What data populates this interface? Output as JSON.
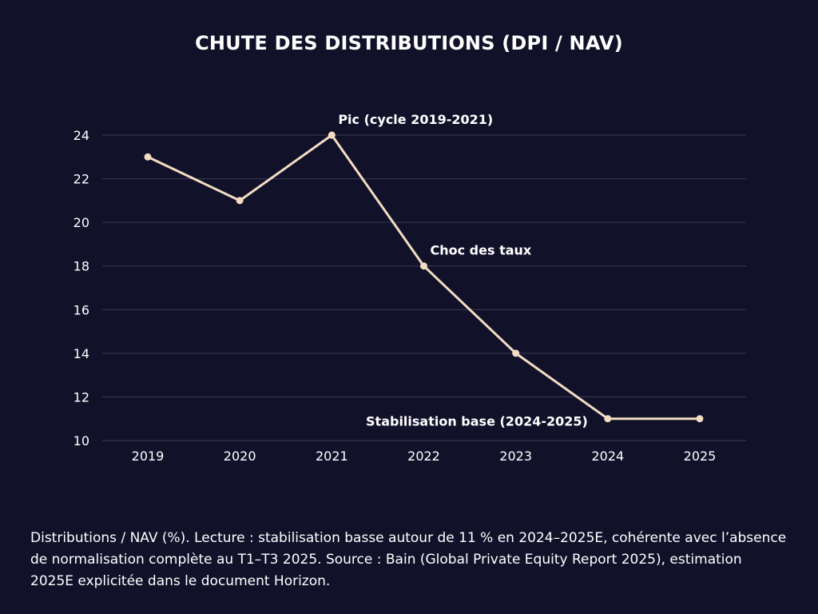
{
  "chart_data": {
    "type": "line",
    "title": "CHUTE DES DISTRIBUTIONS (DPI / NAV)",
    "xlabel": "",
    "ylabel": "",
    "categories": [
      "2019",
      "2020",
      "2021",
      "2022",
      "2023",
      "2024",
      "2025"
    ],
    "series": [
      {
        "values": [
          23,
          21,
          24,
          18,
          14,
          11,
          11
        ]
      }
    ],
    "ylim": [
      10,
      24
    ],
    "yticks": [
      10,
      12,
      14,
      16,
      18,
      20,
      22,
      24
    ],
    "grid": true,
    "annotations": [
      {
        "text": "Pic (cycle 2019-2021)",
        "x": "2021",
        "y": 24
      },
      {
        "text": "Choc des taux",
        "x": "2022",
        "y": 18
      },
      {
        "text": "Stabilisation base (2024-2025)",
        "x": "2024",
        "y": 11
      }
    ]
  },
  "caption": "Distributions / NAV (%). Lecture : stabilisation basse autour de 11 % en 2024–2025E, cohérente avec l’absence de normalisation complète au T1–T3 2025. Source : Bain (Global Private Equity Report 2025), estimation 2025E explicitée dans le document Horizon.",
  "colors": {
    "background": "#12112a",
    "line": "#f2dcc2",
    "grid": "#3a3a52",
    "text": "#ffffff"
  }
}
